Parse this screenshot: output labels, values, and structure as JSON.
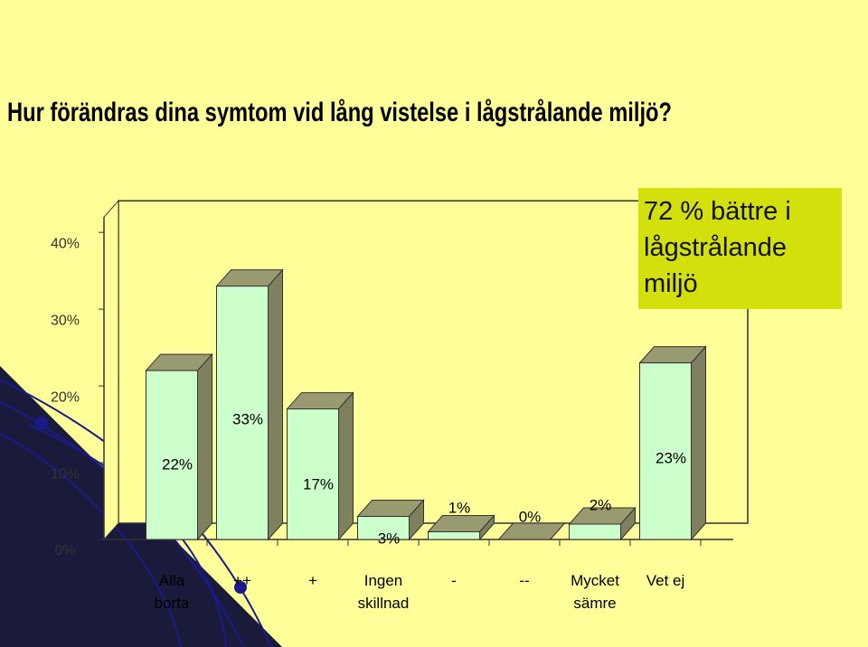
{
  "chart_data": {
    "type": "bar3d",
    "title": "Hur förändras dina symtom vid lång vistelse i lågstrålande miljö?",
    "annotation": "72 % bättre i lågstrålande miljö",
    "categories": [
      "Alla borta",
      "++",
      "+",
      "Ingen skillnad",
      "-",
      "--",
      "Mycket sämre",
      "Vet ej"
    ],
    "values": [
      22,
      33,
      17,
      3,
      1,
      0,
      2,
      23
    ],
    "value_labels": [
      "22%",
      "33%",
      "17%",
      "3%",
      "1%",
      "0%",
      "2%",
      "23%"
    ],
    "color": "#ccffcc",
    "ylim": [
      0,
      42
    ],
    "yticks": [
      {
        "value": 0,
        "label": "0%"
      },
      {
        "value": 10,
        "label": "10%"
      },
      {
        "value": 20,
        "label": "20%"
      },
      {
        "value": 30,
        "label": "30%"
      },
      {
        "value": 40,
        "label": "40%"
      }
    ],
    "grid": false
  }
}
